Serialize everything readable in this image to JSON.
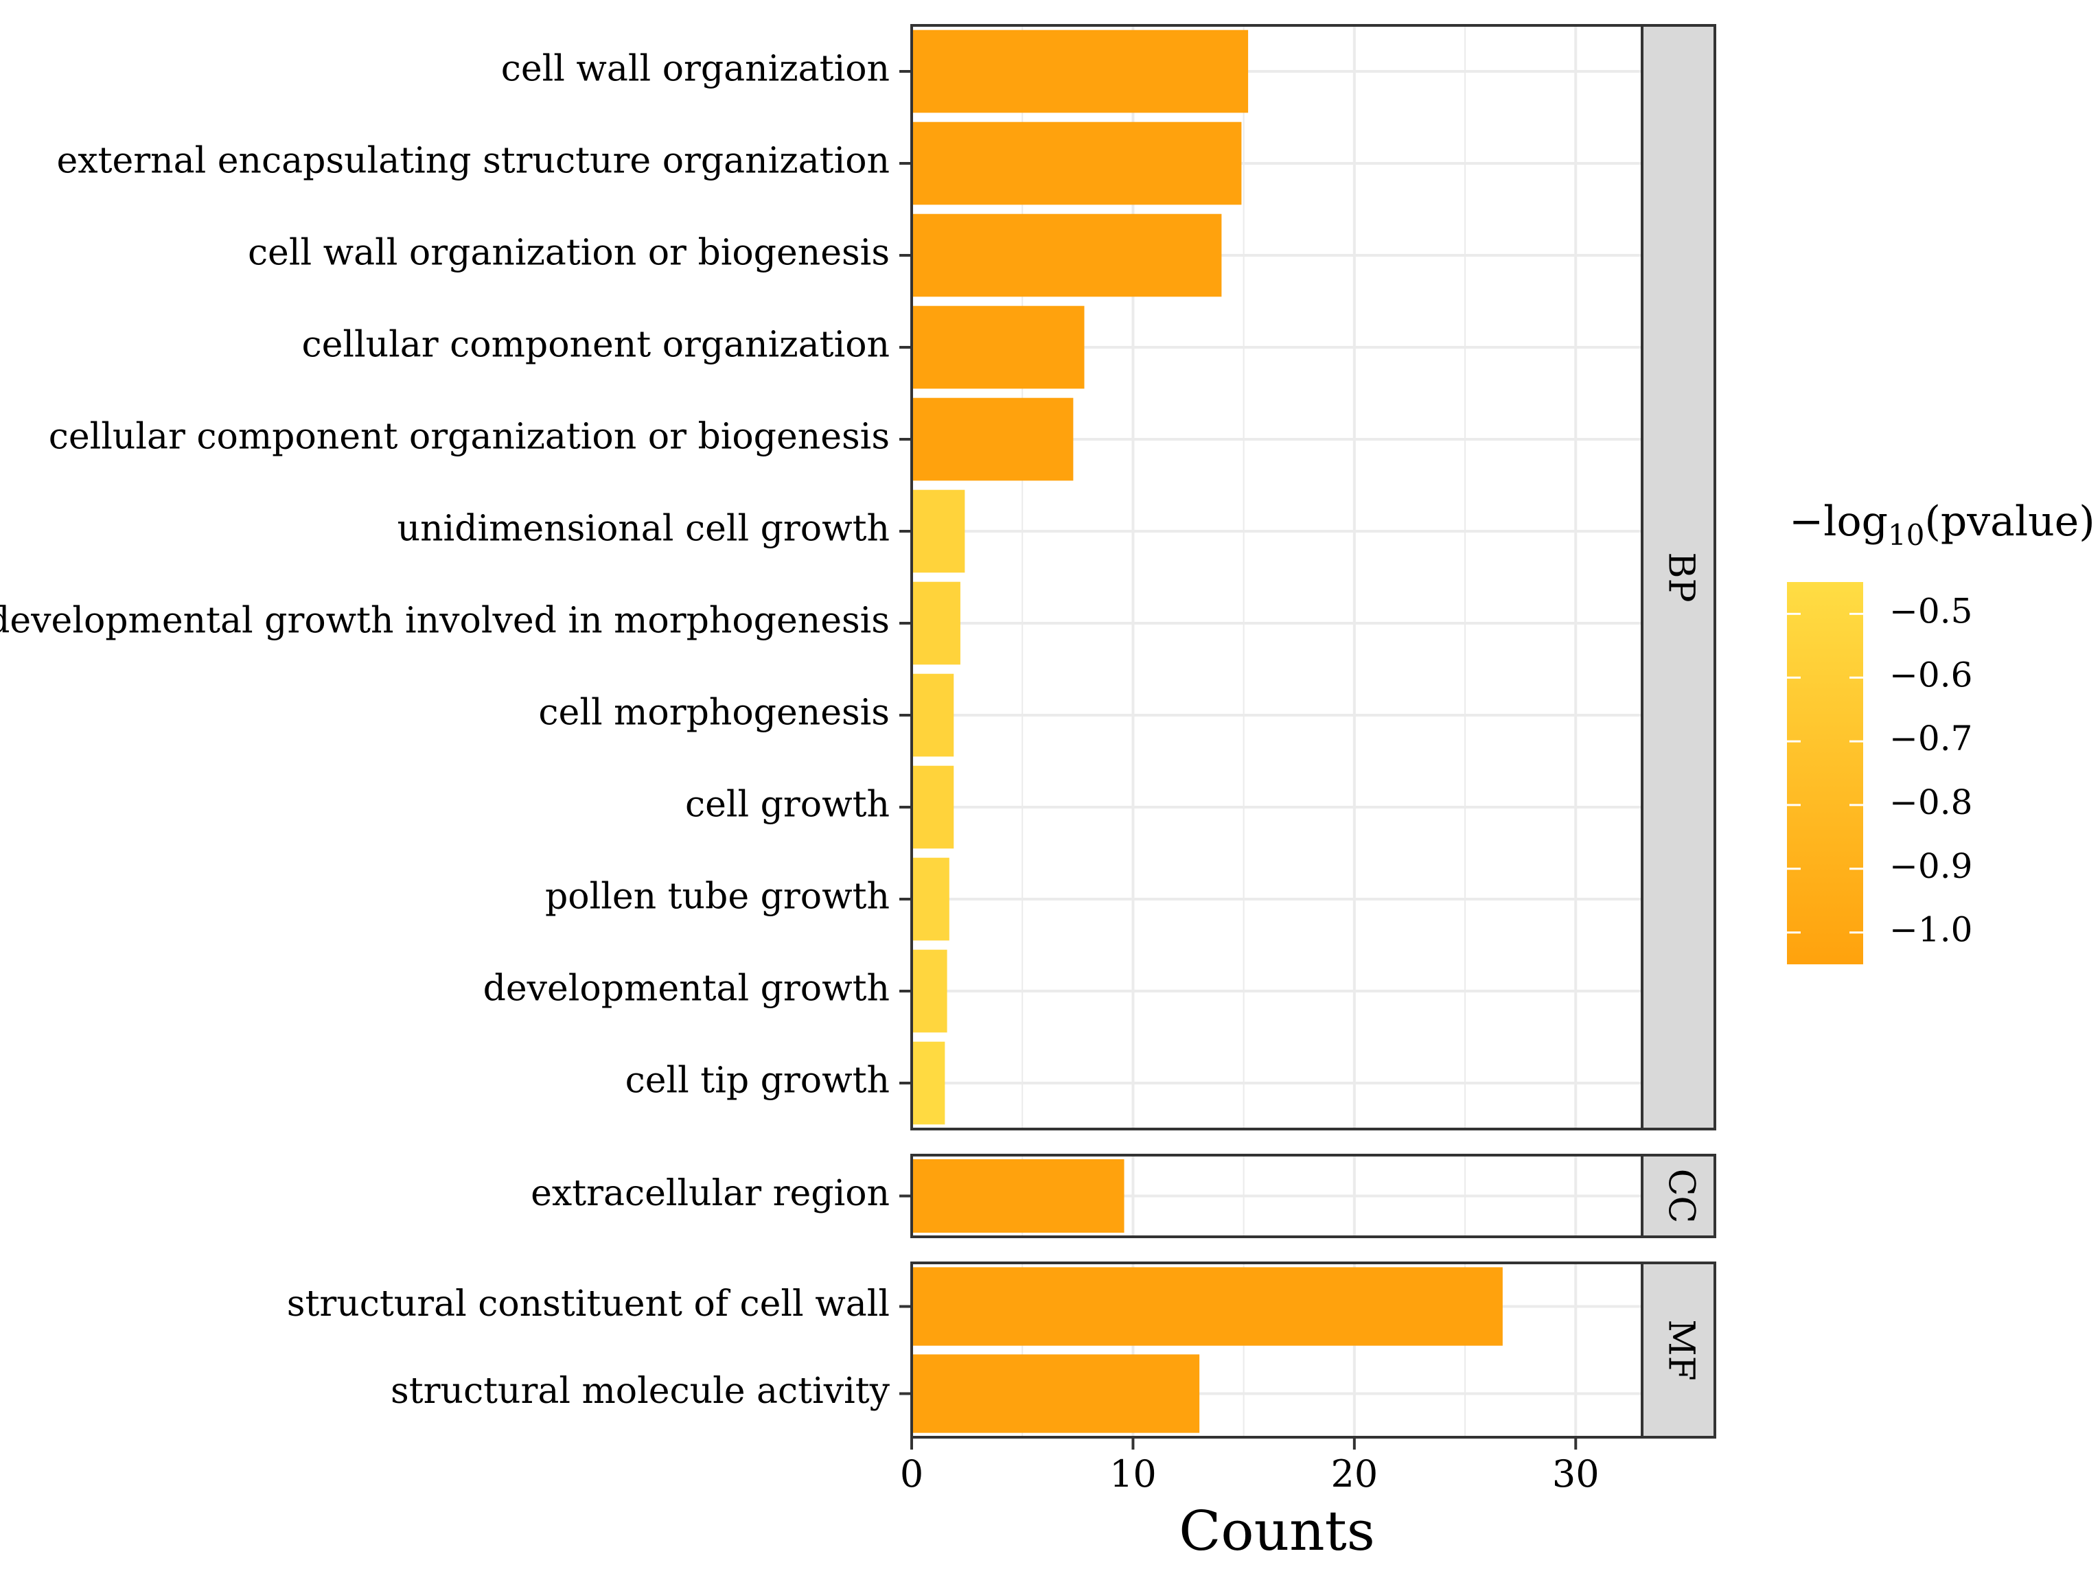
{
  "chart_data": {
    "type": "bar",
    "orientation": "horizontal",
    "xlabel": "Counts",
    "ylabel": "",
    "xlim": [
      0,
      33
    ],
    "x_ticks": [
      0,
      10,
      20,
      30
    ],
    "grid": true,
    "panels": [
      {
        "name": "BP",
        "categories": [
          "cell wall organization",
          "external encapsulating structure organization",
          "cell wall organization or biogenesis",
          "cellular component organization",
          "cellular component organization or biogenesis",
          "unidimensional cell growth",
          "developmental growth involved in morphogenesis",
          "cell morphogenesis",
          "cell growth",
          "pollen tube growth",
          "developmental growth",
          "cell tip growth"
        ],
        "values": [
          15.2,
          14.9,
          14.0,
          7.8,
          7.3,
          2.4,
          2.2,
          1.9,
          1.9,
          1.7,
          1.6,
          1.5
        ],
        "color_values": [
          -1.05,
          -1.05,
          -1.05,
          -1.05,
          -1.05,
          -0.55,
          -0.55,
          -0.55,
          -0.55,
          -0.52,
          -0.52,
          -0.48
        ]
      },
      {
        "name": "CC",
        "categories": [
          "extracellular region"
        ],
        "values": [
          9.6
        ],
        "color_values": [
          -1.05
        ]
      },
      {
        "name": "MF",
        "categories": [
          "structural constituent of cell wall",
          "structural molecule activity"
        ],
        "values": [
          26.7,
          13.0
        ],
        "color_values": [
          -1.05,
          -1.05
        ]
      }
    ],
    "legend": {
      "title_prefix": "−log",
      "title_subscript": "10",
      "title_suffix": "(pvalue)",
      "position": "right",
      "range": [
        -1.05,
        -0.45
      ],
      "ticks": [
        "−0.5",
        "−0.6",
        "−0.7",
        "−0.8",
        "−0.9",
        "−1.0"
      ],
      "tick_values": [
        -0.5,
        -0.6,
        -0.7,
        -0.8,
        -0.9,
        -1.0
      ],
      "low_color": "#FFA20D",
      "high_color": "#FFDD44"
    },
    "colors": {
      "panel_strip": "#D9D9D9",
      "grid": "#EBEBEB",
      "border": "#333333"
    }
  }
}
